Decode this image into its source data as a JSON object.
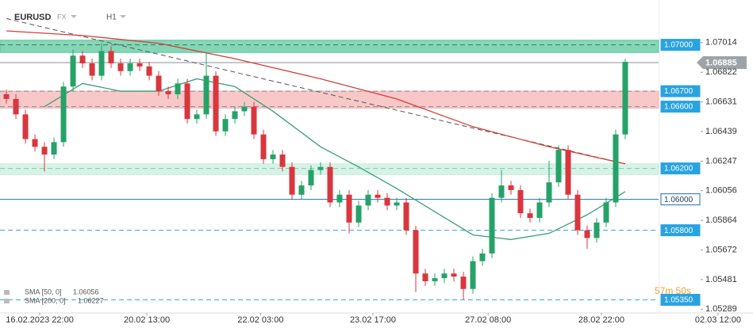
{
  "header": {
    "symbol": "EURUSD",
    "market": "FX",
    "timeframe": "H1"
  },
  "chart_data": {
    "type": "candlestick",
    "up_color": "#26a269",
    "down_color": "#d9363e",
    "open": [
      1.0668,
      1.0665,
      1.0655,
      1.0639,
      1.0634,
      1.0629,
      1.0637,
      1.0673,
      1.0693,
      1.0688,
      1.068,
      1.0696,
      1.0688,
      1.0683,
      1.0688,
      1.0686,
      1.068,
      1.067,
      1.0668,
      1.0675,
      1.0652,
      1.0655,
      1.068,
      1.0644,
      1.0652,
      1.0657,
      1.066,
      1.0642,
      1.0626,
      1.0629,
      1.0621,
      1.0603,
      1.0609,
      1.0619,
      1.0621,
      1.0598,
      1.0603,
      1.0585,
      1.0596,
      1.0603,
      1.0601,
      1.0596,
      1.0598,
      1.058,
      1.0552,
      1.0547,
      1.0549,
      1.0552,
      1.055,
      1.0542,
      1.056,
      1.0565,
      1.0601,
      1.0609,
      1.0606,
      1.0591,
      1.0588,
      1.0598,
      1.0611,
      1.0632,
      1.0603,
      1.058,
      1.0575,
      1.0585,
      1.0598,
      1.0642
    ],
    "high": [
      1.0671,
      1.0668,
      1.0658,
      1.0642,
      1.0637,
      1.064,
      1.0676,
      1.0697,
      1.0696,
      1.0691,
      1.0701,
      1.0699,
      1.0691,
      1.0691,
      1.0691,
      1.0689,
      1.0683,
      1.0673,
      1.0678,
      1.0678,
      1.0658,
      1.0695,
      1.0683,
      1.0655,
      1.066,
      1.0663,
      1.0663,
      1.0645,
      1.0632,
      1.0632,
      1.0624,
      1.0612,
      1.0622,
      1.0624,
      1.0624,
      1.0606,
      1.0606,
      1.0599,
      1.0606,
      1.0606,
      1.0604,
      1.0601,
      1.0601,
      1.0583,
      1.0555,
      1.0552,
      1.0555,
      1.0555,
      1.0553,
      1.0563,
      1.0568,
      1.0604,
      1.0619,
      1.0612,
      1.0609,
      1.0594,
      1.0601,
      1.0625,
      1.0635,
      1.0635,
      1.0606,
      1.0583,
      1.0588,
      1.0601,
      1.0645,
      1.0691
    ],
    "low": [
      1.0662,
      1.0652,
      1.0636,
      1.0631,
      1.0618,
      1.0626,
      1.0634,
      1.067,
      1.0685,
      1.0677,
      1.0677,
      1.0685,
      1.068,
      1.068,
      1.0683,
      1.0677,
      1.0667,
      1.0665,
      1.0665,
      1.0649,
      1.0649,
      1.0652,
      1.0641,
      1.0641,
      1.0649,
      1.0654,
      1.0639,
      1.0623,
      1.0623,
      1.0618,
      1.06,
      1.06,
      1.0606,
      1.0616,
      1.0595,
      1.0595,
      1.0578,
      1.0582,
      1.0593,
      1.0598,
      1.0593,
      1.0593,
      1.0577,
      1.054,
      1.0544,
      1.0544,
      1.0546,
      1.0547,
      1.0535,
      1.0539,
      1.0557,
      1.0562,
      1.0598,
      1.0603,
      1.0588,
      1.0585,
      1.0585,
      1.0595,
      1.0608,
      1.06,
      1.0577,
      1.0568,
      1.0572,
      1.0582,
      1.0595,
      1.0639
    ],
    "close": [
      1.0665,
      1.0655,
      1.0639,
      1.0634,
      1.0629,
      1.0637,
      1.0673,
      1.0693,
      1.0688,
      1.068,
      1.0696,
      1.0688,
      1.0683,
      1.0688,
      1.0686,
      1.068,
      1.067,
      1.0668,
      1.0675,
      1.0652,
      1.0655,
      1.068,
      1.0644,
      1.0652,
      1.0657,
      1.066,
      1.0642,
      1.0626,
      1.0629,
      1.0621,
      1.0603,
      1.0609,
      1.0619,
      1.0621,
      1.0598,
      1.0603,
      1.0585,
      1.0596,
      1.0603,
      1.0601,
      1.0596,
      1.0598,
      1.058,
      1.0552,
      1.0547,
      1.0549,
      1.0552,
      1.055,
      1.0542,
      1.056,
      1.0565,
      1.0601,
      1.0609,
      1.0606,
      1.0591,
      1.0588,
      1.0598,
      1.0611,
      1.0632,
      1.0603,
      1.058,
      1.0575,
      1.0585,
      1.0598,
      1.0642,
      1.0689
    ],
    "xlim": [
      -0.67,
      78.42
    ],
    "ylim": [
      1.0527,
      1.0729
    ],
    "yticks": [
      1.07014,
      1.06822,
      1.06631,
      1.06439,
      1.06247,
      1.06056,
      1.05864,
      1.05672,
      1.05481,
      1.05289
    ],
    "xticks": [
      {
        "value": 3.5,
        "label": "16.02.2023 22:00"
      },
      {
        "value": 14.75,
        "label": "20.02 13:00"
      },
      {
        "value": 26.7,
        "label": "22.02 03:00"
      },
      {
        "value": 38.5,
        "label": "23.02 17:00"
      },
      {
        "value": 50.6,
        "label": "27.02 08:00"
      },
      {
        "value": 62.5,
        "label": "28.02 22:00"
      },
      {
        "value": 74.75,
        "label": "02.03 12:00"
      }
    ],
    "overlays": [
      {
        "name": "SMA [50, 0]",
        "last": 1.06056,
        "color": "#3a9e78",
        "x": [
          4,
          8,
          12,
          16,
          20,
          24,
          28,
          33,
          37,
          41,
          45,
          49,
          53,
          57,
          61,
          65
        ],
        "values": [
          1.066,
          1.0675,
          1.067,
          1.067,
          1.0678,
          1.0673,
          1.0657,
          1.0634,
          1.0621,
          1.0607,
          1.0592,
          1.0577,
          1.0574,
          1.0578,
          1.059,
          1.0605
        ]
      },
      {
        "name": "SMA [200, 0]",
        "last": 1.06227,
        "color": "#d43f3a",
        "x": [
          0,
          8,
          16,
          24,
          33,
          41,
          49,
          57,
          65
        ],
        "values": [
          1.0709,
          1.0706,
          1.0701,
          1.0691,
          1.0678,
          1.0665,
          1.0647,
          1.0634,
          1.0623
        ]
      }
    ],
    "trendline": {
      "color": "#555555",
      "x": [
        0,
        65
      ],
      "values": [
        1.0717,
        1.0623
      ]
    },
    "zones": [
      {
        "from": 1.0695,
        "to": 1.0703,
        "color": "#5cc89e"
      },
      {
        "from": 1.0659,
        "to": 1.067,
        "color": "#f6b5b5"
      },
      {
        "from": 1.0616,
        "to": 1.0623,
        "color": "#c9eedf"
      }
    ],
    "levels": [
      {
        "price": {
          "value": 1.07,
          "label": "1.07000"
        },
        "dashed": true,
        "color": "#2f7a5c"
      },
      {
        "price": {
          "value": 1.067,
          "label": "1.06700"
        },
        "dashed": true,
        "color": "#888888"
      },
      {
        "price": {
          "value": 1.066,
          "label": "1.06600"
        },
        "dashed": true,
        "color": "#888888"
      },
      {
        "price": {
          "value": 1.062,
          "label": "1.06200"
        },
        "dashed": true,
        "color": "#7fc9ab"
      },
      {
        "price": {
          "value": 1.06,
          "label": "1.06000"
        },
        "dashed": false,
        "color": "#1e6fb8"
      },
      {
        "price": {
          "value": 1.058,
          "label": "1.05800"
        },
        "dashed": true,
        "color": "#29a3e0"
      },
      {
        "price": {
          "value": 1.0535,
          "label": "1.05350"
        },
        "dashed": true,
        "color": "#29a3e0"
      }
    ],
    "current_price": 1.06885,
    "countdown": "57m 50s"
  }
}
